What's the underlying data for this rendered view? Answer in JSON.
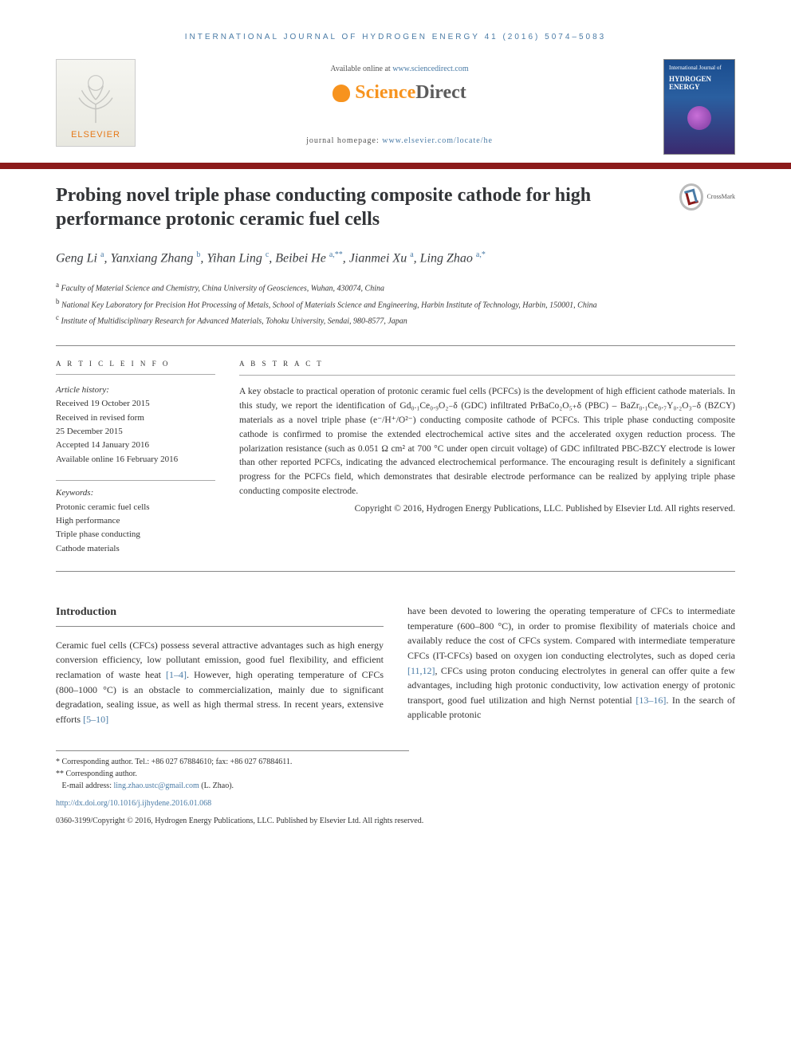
{
  "running_header": "INTERNATIONAL JOURNAL OF HYDROGEN ENERGY 41 (2016) 5074–5083",
  "top": {
    "available_prefix": "Available online at ",
    "available_link": "www.sciencedirect.com",
    "sciencedirect": "ScienceDirect",
    "elsevier": "ELSEVIER",
    "homepage_prefix": "journal homepage: ",
    "homepage_link": "www.elsevier.com/locate/he",
    "cover_small": "International Journal of",
    "cover_title": "HYDROGEN ENERGY"
  },
  "crossmark": "CrossMark",
  "title": "Probing novel triple phase conducting composite cathode for high performance protonic ceramic fuel cells",
  "authors_html": "Geng Li <sup>a</sup>, Yanxiang Zhang <sup>b</sup>, Yihan Ling <sup>c</sup>, Beibei He <sup>a,**</sup>, Jianmei Xu <sup>a</sup>, Ling Zhao <sup>a,*</sup>",
  "affiliations": {
    "a": "Faculty of Material Science and Chemistry, China University of Geosciences, Wuhan, 430074, China",
    "b": "National Key Laboratory for Precision Hot Processing of Metals, School of Materials Science and Engineering, Harbin Institute of Technology, Harbin, 150001, China",
    "c": "Institute of Multidisciplinary Research for Advanced Materials, Tohoku University, Sendai, 980-8577, Japan"
  },
  "info": {
    "heading": "A R T I C L E   I N F O",
    "history_label": "Article history:",
    "received": "Received 19 October 2015",
    "revised1": "Received in revised form",
    "revised2": "25 December 2015",
    "accepted": "Accepted 14 January 2016",
    "online": "Available online 16 February 2016",
    "keywords_label": "Keywords:",
    "kw1": "Protonic ceramic fuel cells",
    "kw2": "High performance",
    "kw3": "Triple phase conducting",
    "kw4": "Cathode materials"
  },
  "abstract": {
    "heading": "A B S T R A C T",
    "text": "A key obstacle to practical operation of protonic ceramic fuel cells (PCFCs) is the development of high efficient cathode materials. In this study, we report the identification of Gd₀.₁Ce₀.₉O₂₋δ (GDC) infiltrated PrBaCo₂O₅₊δ (PBC) – BaZr₀.₁Ce₀.₇Y₀.₂O₃₋δ (BZCY) materials as a novel triple phase (e⁻/H⁺/O²⁻) conducting composite cathode of PCFCs. This triple phase conducting composite cathode is confirmed to promise the extended electrochemical active sites and the accelerated oxygen reduction process. The polarization resistance (such as 0.051 Ω cm² at 700 °C under open circuit voltage) of GDC infiltrated PBC-BZCY electrode is lower than other reported PCFCs, indicating the advanced electrochemical performance. The encouraging result is definitely a significant progress for the PCFCs field, which demonstrates that desirable electrode performance can be realized by applying triple phase conducting composite electrode.",
    "copyright": "Copyright © 2016, Hydrogen Energy Publications, LLC. Published by Elsevier Ltd. All rights reserved."
  },
  "body": {
    "intro_heading": "Introduction",
    "col1_part1": "Ceramic fuel cells (CFCs) possess several attractive advantages such as high energy conversion efficiency, low pollutant emission, good fuel flexibility, and efficient reclamation of waste heat ",
    "col1_cite1": "[1–4]",
    "col1_part2": ". However, high operating temperature of CFCs (800–1000 °C) is an obstacle to commercialization, mainly due to significant degradation, sealing issue, as well as high thermal stress. In recent years, extensive efforts ",
    "col1_cite2": "[5–10]",
    "col2_part1": "have been devoted to lowering the operating temperature of CFCs to intermediate temperature (600–800 °C), in order to promise flexibility of materials choice and availably reduce the cost of CFCs system. Compared with intermediate temperature CFCs (IT-CFCs) based on oxygen ion conducting electrolytes, such as doped ceria ",
    "col2_cite1": "[11,12]",
    "col2_part2": ", CFCs using proton conducing electrolytes in general can offer quite a few advantages, including high protonic conductivity, low activation energy of protonic transport, good fuel utilization and high Nernst potential ",
    "col2_cite2": "[13–16]",
    "col2_part3": ". In the search of applicable protonic"
  },
  "footnotes": {
    "corr1": "* Corresponding author. Tel.: +86 027 67884610; fax: +86 027 67884611.",
    "corr2": "** Corresponding author.",
    "email_label": "E-mail address: ",
    "email": "ling.zhao.ustc@gmail.com",
    "email_suffix": " (L. Zhao).",
    "doi": "http://dx.doi.org/10.1016/j.ijhydene.2016.01.068",
    "issn": "0360-3199/Copyright © 2016, Hydrogen Energy Publications, LLC. Published by Elsevier Ltd. All rights reserved."
  },
  "colors": {
    "link": "#4a7ba6",
    "elsevier_orange": "#e67817",
    "sd_orange": "#f7931e",
    "red_bar": "#8b1a1a",
    "text": "#333333"
  }
}
